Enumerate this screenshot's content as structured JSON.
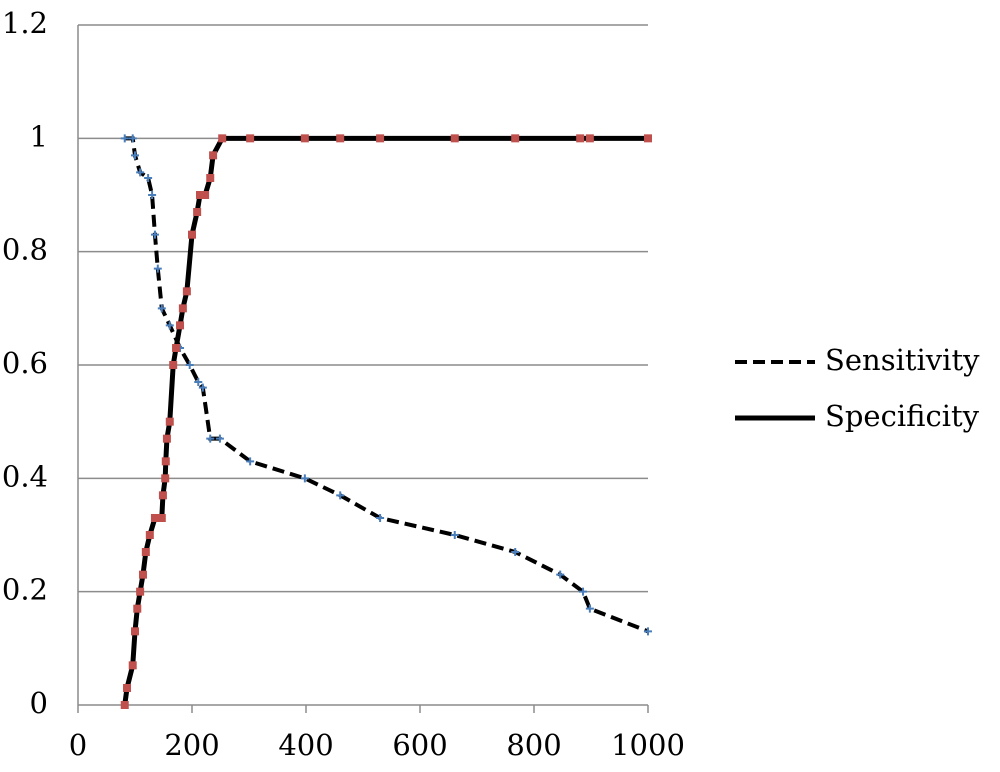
{
  "chart_data": {
    "type": "line",
    "xlim": [
      0,
      1000
    ],
    "xticks": [
      0,
      200,
      400,
      600,
      800,
      1000
    ],
    "ylim": [
      0,
      1.2
    ],
    "yticks": [
      0,
      0.2,
      0.4,
      0.6,
      0.8,
      1,
      1.2
    ],
    "grid": true,
    "legend": "right",
    "series": [
      {
        "name": "Sensitivity",
        "color": "#4a7ebb",
        "line_color": "#000000",
        "dashed": true,
        "x": [
          82,
          96,
          100,
          109,
          123,
          130,
          135,
          140,
          147,
          161,
          179,
          196,
          211,
          219,
          232,
          249,
          302,
          398,
          460,
          530,
          661,
          767,
          846,
          886,
          898,
          1000
        ],
        "values": [
          1.0,
          1.0,
          0.97,
          0.94,
          0.93,
          0.9,
          0.83,
          0.77,
          0.7,
          0.67,
          0.63,
          0.6,
          0.57,
          0.56,
          0.47,
          0.47,
          0.43,
          0.4,
          0.37,
          0.33,
          0.3,
          0.27,
          0.23,
          0.2,
          0.17,
          0.13
        ]
      },
      {
        "name": "Specificity",
        "color": "#c0504d",
        "line_color": "#000000",
        "dashed": false,
        "x": [
          82,
          86,
          96,
          100,
          104,
          109,
          114,
          119,
          126,
          135,
          147,
          149,
          153,
          154,
          156,
          161,
          167,
          172,
          179,
          184,
          191,
          200,
          209,
          214,
          223,
          232,
          237,
          253,
          302,
          398,
          460,
          530,
          661,
          767,
          881,
          898,
          1000
        ],
        "values": [
          0,
          0.03,
          0.07,
          0.13,
          0.17,
          0.2,
          0.23,
          0.27,
          0.3,
          0.33,
          0.33,
          0.37,
          0.4,
          0.43,
          0.47,
          0.5,
          0.6,
          0.63,
          0.67,
          0.7,
          0.73,
          0.83,
          0.87,
          0.9,
          0.9,
          0.93,
          0.97,
          1,
          1,
          1,
          1,
          1,
          1,
          1,
          1,
          1,
          1
        ]
      }
    ]
  }
}
